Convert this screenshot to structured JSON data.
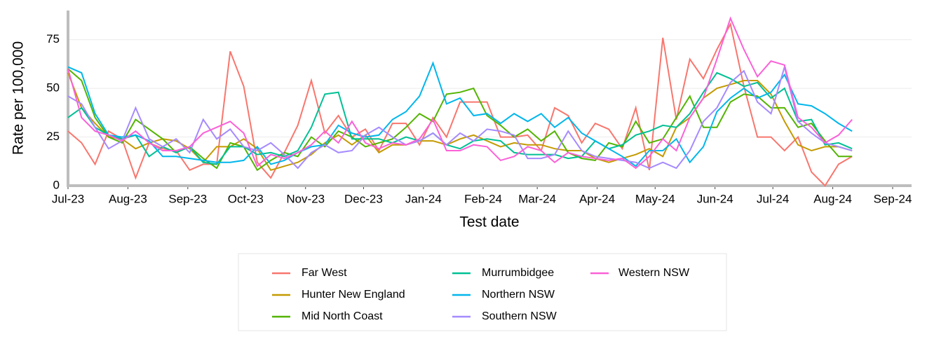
{
  "chart_data": {
    "type": "line",
    "xlabel": "Test date",
    "ylabel": "Rate per 100,000",
    "x": [
      0,
      1,
      2,
      3,
      4,
      5,
      6,
      7,
      8,
      9,
      10,
      11,
      12,
      13,
      14,
      15,
      16,
      17,
      18,
      19,
      20,
      21,
      22,
      23,
      24,
      25,
      26,
      27,
      28,
      29,
      30,
      31,
      32,
      33,
      34,
      35,
      36,
      37,
      38,
      39,
      40,
      41,
      42,
      43,
      44,
      45,
      46,
      47,
      48,
      49,
      50,
      51,
      52,
      53,
      54,
      55,
      56,
      57,
      58
    ],
    "xlim": [
      0,
      62.4
    ],
    "xticks": [
      {
        "value": 0,
        "label": "Jul-23"
      },
      {
        "value": 4.43,
        "label": "Aug-23"
      },
      {
        "value": 8.86,
        "label": "Sep-23"
      },
      {
        "value": 13.14,
        "label": "Oct-23"
      },
      {
        "value": 17.57,
        "label": "Nov-23"
      },
      {
        "value": 21.86,
        "label": "Dec-23"
      },
      {
        "value": 26.29,
        "label": "Jan-24"
      },
      {
        "value": 30.71,
        "label": "Feb-24"
      },
      {
        "value": 34.71,
        "label": "Mar-24"
      },
      {
        "value": 39.14,
        "label": "Apr-24"
      },
      {
        "value": 43.43,
        "label": "May-24"
      },
      {
        "value": 47.86,
        "label": "Jun-24"
      },
      {
        "value": 52.14,
        "label": "Jul-24"
      },
      {
        "value": 56.57,
        "label": "Aug-24"
      },
      {
        "value": 61,
        "label": "Sep-24"
      }
    ],
    "ylim": [
      0,
      90
    ],
    "yticks": [
      0,
      25,
      50,
      75
    ],
    "grid": true,
    "series": [
      {
        "name": "Far West",
        "color": "#f8766d",
        "values": [
          28,
          22,
          11,
          28,
          24,
          4,
          22,
          19,
          18,
          8,
          11,
          11,
          69,
          51,
          12,
          4,
          17,
          31,
          54,
          27,
          36,
          25,
          29,
          18,
          32,
          32,
          21,
          35,
          25,
          43,
          43,
          43,
          25,
          25,
          26,
          18,
          40,
          36,
          22,
          32,
          29,
          19,
          40,
          8,
          76,
          34,
          65,
          55,
          70,
          83,
          51,
          25,
          25,
          18,
          25,
          7,
          0,
          11,
          15
        ]
      },
      {
        "name": "Hunter New England",
        "color": "#c49a00",
        "values": [
          58,
          40,
          32,
          25,
          24,
          19,
          22,
          24,
          23,
          19,
          12,
          20,
          20,
          24,
          19,
          8,
          10,
          12,
          16,
          22,
          26,
          21,
          26,
          17,
          21,
          21,
          23,
          23,
          21,
          24,
          26,
          23,
          20,
          22,
          21,
          21,
          19,
          18,
          18,
          14,
          12,
          14,
          16,
          19,
          15,
          30,
          35,
          45,
          50,
          52,
          54,
          54,
          47,
          33,
          21,
          18,
          20,
          20,
          18
        ]
      },
      {
        "name": "Mid North Coast",
        "color": "#53b400",
        "values": [
          60,
          54,
          35,
          25,
          22,
          34,
          29,
          24,
          17,
          20,
          14,
          9,
          22,
          20,
          8,
          13,
          17,
          15,
          25,
          20,
          28,
          25,
          20,
          22,
          24,
          30,
          37,
          33,
          47,
          48,
          50,
          36,
          31,
          25,
          29,
          23,
          28,
          17,
          14,
          13,
          22,
          20,
          33,
          22,
          24,
          35,
          46,
          30,
          30,
          43,
          47,
          46,
          40,
          40,
          30,
          32,
          23,
          15,
          15
        ]
      },
      {
        "name": "Murrumbidgee",
        "color": "#00c094",
        "values": [
          35,
          40,
          30,
          26,
          24,
          26,
          15,
          20,
          17,
          20,
          12,
          11,
          20,
          20,
          16,
          17,
          15,
          18,
          30,
          47,
          48,
          24,
          24,
          24,
          22,
          25,
          23,
          27,
          21,
          19,
          23,
          24,
          23,
          17,
          16,
          16,
          16,
          14,
          15,
          23,
          19,
          21,
          26,
          28,
          31,
          30,
          37,
          48,
          58,
          55,
          51,
          53,
          45,
          50,
          33,
          34,
          21,
          22,
          19
        ]
      },
      {
        "name": "Northern NSW",
        "color": "#00b6eb",
        "values": [
          61,
          58,
          37,
          26,
          25,
          26,
          23,
          15,
          15,
          14,
          13,
          12,
          12,
          13,
          20,
          11,
          13,
          17,
          20,
          21,
          31,
          27,
          25,
          26,
          34,
          38,
          46,
          63,
          42,
          45,
          36,
          37,
          32,
          37,
          33,
          37,
          30,
          35,
          27,
          23,
          19,
          15,
          10,
          18,
          18,
          24,
          12,
          20,
          38,
          45,
          50,
          45,
          48,
          57,
          42,
          41,
          37,
          32,
          28
        ]
      },
      {
        "name": "Southern NSW",
        "color": "#a58aff",
        "values": [
          46,
          42,
          30,
          19,
          23,
          40,
          24,
          20,
          24,
          17,
          34,
          24,
          29,
          20,
          18,
          22,
          16,
          9,
          17,
          21,
          17,
          18,
          26,
          30,
          25,
          21,
          23,
          27,
          21,
          27,
          23,
          29,
          28,
          26,
          14,
          14,
          16,
          28,
          18,
          15,
          14,
          13,
          12,
          9,
          12,
          9,
          18,
          33,
          40,
          53,
          59,
          43,
          37,
          61,
          33,
          27,
          22,
          20,
          18
        ]
      },
      {
        "name": "Western NSW",
        "color": "#fb61d7",
        "values": [
          60,
          35,
          28,
          26,
          23,
          28,
          22,
          18,
          18,
          20,
          27,
          30,
          33,
          27,
          10,
          16,
          14,
          17,
          21,
          28,
          22,
          33,
          22,
          19,
          22,
          21,
          24,
          34,
          18,
          18,
          21,
          20,
          13,
          15,
          20,
          18,
          12,
          17,
          15,
          14,
          13,
          14,
          9,
          15,
          24,
          18,
          35,
          45,
          65,
          86,
          70,
          56,
          64,
          62,
          35,
          30,
          22,
          26,
          34
        ]
      }
    ]
  }
}
